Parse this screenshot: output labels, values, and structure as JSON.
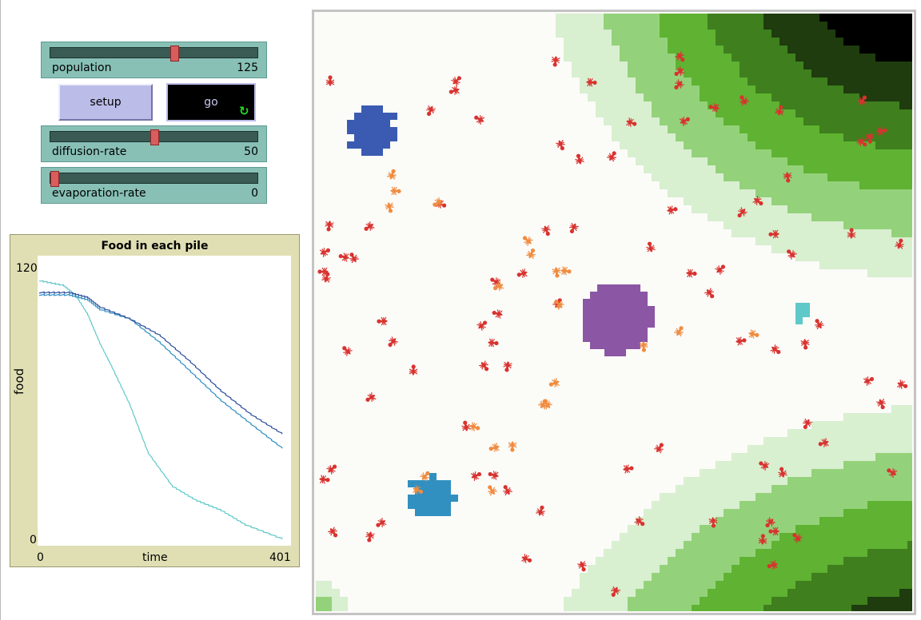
{
  "sliders": [
    {
      "id": "population",
      "label": "population",
      "value": "125",
      "fraction": 0.6
    },
    {
      "id": "diffusion-rate",
      "label": "diffusion-rate",
      "value": "50",
      "fraction": 0.5
    },
    {
      "id": "evaporation-rate",
      "label": "evaporation-rate",
      "value": "0",
      "fraction": 0.0
    }
  ],
  "buttons": {
    "setup": "setup",
    "go": "go",
    "go_forever_icon": "forever-arrows-icon"
  },
  "plot": {
    "title": "Food in each pile",
    "y_max": "120",
    "y_min": "0",
    "x_min": "0",
    "x_max": "401",
    "x_label": "time",
    "y_label": "food"
  },
  "chart_data": {
    "type": "line",
    "title": "Food in each pile",
    "xlabel": "time",
    "ylabel": "food",
    "xlim": [
      0,
      401
    ],
    "ylim": [
      0,
      120
    ],
    "series": [
      {
        "color": "#5fc9c9",
        "x": [
          0,
          40,
          60,
          80,
          100,
          120,
          150,
          180,
          220,
          260,
          300,
          340,
          401
        ],
        "y": [
          110,
          108,
          104,
          96,
          84,
          74,
          58,
          38,
          24,
          18,
          14,
          8,
          2
        ]
      },
      {
        "color": "#2e8fc2",
        "x": [
          0,
          50,
          80,
          100,
          150,
          200,
          250,
          300,
          350,
          401
        ],
        "y": [
          104,
          104,
          102,
          98,
          94,
          84,
          72,
          60,
          50,
          40
        ]
      },
      {
        "color": "#2b4c9c",
        "x": [
          0,
          50,
          80,
          100,
          150,
          200,
          250,
          300,
          350,
          401
        ],
        "y": [
          105,
          105,
          103,
          99,
          94,
          87,
          76,
          64,
          54,
          46
        ]
      }
    ]
  },
  "world": {
    "background": "#fbfbf8",
    "nest_colors": [
      "#000000",
      "#1e3c0e",
      "#3f7f1e",
      "#5fb232",
      "#93d27a",
      "#d8efd0"
    ],
    "food_piles": [
      {
        "color": "#3a5bb1",
        "label": "food-pile-1"
      },
      {
        "color": "#8b56a3",
        "label": "food-pile-2"
      },
      {
        "color": "#3190c0",
        "label": "food-pile-3"
      },
      {
        "color": "#5fc9c9",
        "label": "food-pile-4"
      }
    ],
    "ant_colors": {
      "searching": "#d8332f",
      "carrying": "#f08c40"
    }
  }
}
